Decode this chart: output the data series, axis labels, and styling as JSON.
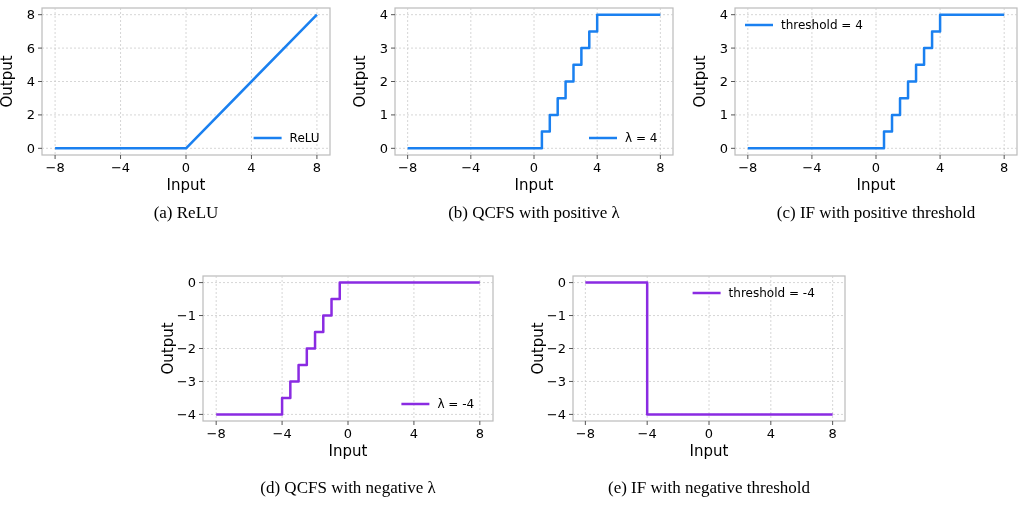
{
  "chart_data": [
    {
      "type": "line",
      "xlabel": "Input",
      "ylabel": "Output",
      "x": [
        -8,
        0,
        8
      ],
      "series": [
        {
          "name": "ReLU",
          "color": "#1a80f0",
          "values": [
            0,
            0,
            8
          ]
        }
      ],
      "xlim": [
        -8.8,
        8.8
      ],
      "ylim": [
        -0.4,
        8.4
      ],
      "xticks": [
        -8,
        -4,
        0,
        4,
        8
      ],
      "yticks": [
        0,
        2,
        4,
        6,
        8
      ],
      "grid": true,
      "legend": "bottom right",
      "annotations": [
        "(a) ReLU"
      ]
    },
    {
      "type": "step",
      "xlabel": "Input",
      "ylabel": "Output",
      "x": [
        -8,
        0.5,
        1,
        1.5,
        2,
        2.5,
        3,
        3.5,
        4,
        8
      ],
      "series": [
        {
          "name": "λ = 4",
          "color": "#1a80f0",
          "values": [
            0,
            0.5,
            1,
            1.5,
            2,
            2.5,
            3,
            3.5,
            4,
            4
          ]
        }
      ],
      "xlim": [
        -8.8,
        8.8
      ],
      "ylim": [
        -0.2,
        4.2
      ],
      "xticks": [
        -8,
        -4,
        0,
        4,
        8
      ],
      "yticks": [
        0,
        1,
        2,
        3,
        4
      ],
      "grid": true,
      "legend": "bottom right",
      "annotations": [
        "(b) QCFS with positive λ"
      ]
    },
    {
      "type": "step",
      "xlabel": "Input",
      "ylabel": "Output",
      "x": [
        -8,
        0.5,
        1,
        1.5,
        2,
        2.5,
        3,
        3.5,
        4,
        8
      ],
      "series": [
        {
          "name": "threshold = 4",
          "color": "#1a80f0",
          "values": [
            0,
            0.5,
            1,
            1.5,
            2,
            2.5,
            3,
            3.5,
            4,
            4
          ]
        }
      ],
      "xlim": [
        -8.8,
        8.8
      ],
      "ylim": [
        -0.2,
        4.2
      ],
      "xticks": [
        -8,
        -4,
        0,
        4,
        8
      ],
      "yticks": [
        0,
        1,
        2,
        3,
        4
      ],
      "grid": true,
      "legend": "top left",
      "annotations": [
        "(c) IF with positive threshold"
      ]
    },
    {
      "type": "step",
      "xlabel": "Input",
      "ylabel": "Output",
      "x": [
        -8,
        -4,
        -3.5,
        -3,
        -2.5,
        -2,
        -1.5,
        -1,
        -0.5,
        8
      ],
      "series": [
        {
          "name": "λ = -4",
          "color": "#8a2be2",
          "values": [
            -4,
            -3.5,
            -3,
            -2.5,
            -2,
            -1.5,
            -1,
            -0.5,
            0,
            0
          ]
        }
      ],
      "xlim": [
        -8.8,
        8.8
      ],
      "ylim": [
        -4.2,
        0.2
      ],
      "xticks": [
        -8,
        -4,
        0,
        4,
        8
      ],
      "yticks": [
        -4,
        -3,
        -2,
        -1,
        0
      ],
      "grid": true,
      "legend": "bottom right",
      "annotations": [
        "(d) QCFS with negative λ"
      ]
    },
    {
      "type": "step",
      "xlabel": "Input",
      "ylabel": "Output",
      "x": [
        -8,
        -4,
        8
      ],
      "series": [
        {
          "name": "threshold = -4",
          "color": "#8a2be2",
          "values": [
            0,
            -4,
            -4
          ]
        }
      ],
      "xlim": [
        -8.8,
        8.8
      ],
      "ylim": [
        -4.2,
        0.2
      ],
      "xticks": [
        -8,
        -4,
        0,
        4,
        8
      ],
      "yticks": [
        -4,
        -3,
        -2,
        -1,
        0
      ],
      "grid": true,
      "legend": "top right",
      "annotations": [
        "(e) IF with negative threshold"
      ]
    }
  ]
}
